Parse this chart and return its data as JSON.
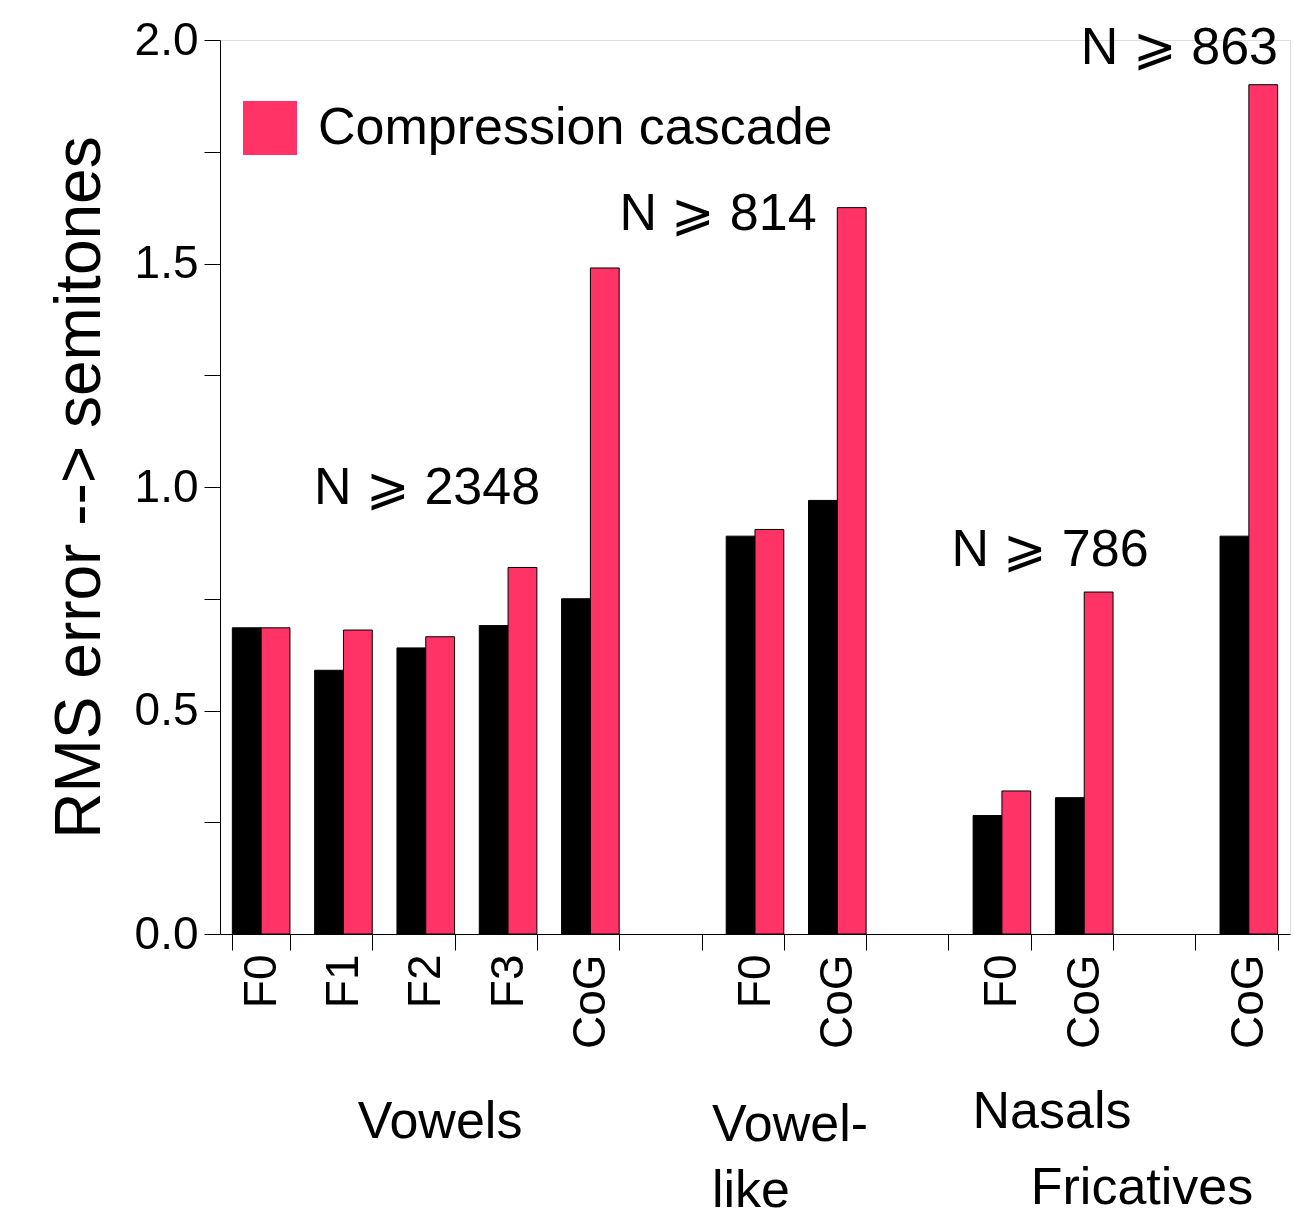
{
  "chart_data": {
    "type": "bar",
    "ylabel": "RMS error --> semitones",
    "categories": [
      "F0",
      "F1",
      "F2",
      "F3",
      "CoG",
      null,
      "F0",
      "CoG",
      null,
      "F0",
      "CoG",
      null,
      "CoG"
    ],
    "series": [
      {
        "color": "#000000",
        "values": [
          0.685,
          0.59,
          0.64,
          0.69,
          0.75,
          null,
          0.89,
          0.97,
          null,
          0.265,
          0.305,
          null,
          0.89
        ]
      },
      {
        "name": "Compression cascade",
        "color": "#ff3366",
        "values": [
          0.685,
          0.68,
          0.665,
          0.82,
          1.49,
          null,
          0.905,
          1.625,
          null,
          0.32,
          0.765,
          null,
          1.9
        ]
      }
    ],
    "ylim": [
      0,
      2
    ],
    "yticks": [
      {
        "value": 0,
        "label": "0.0"
      },
      {
        "value": 0.25,
        "label": null
      },
      {
        "value": 0.5,
        "label": "0.5"
      },
      {
        "value": 0.75,
        "label": null
      },
      {
        "value": 1,
        "label": "1.0"
      },
      {
        "value": 1.25,
        "label": null
      },
      {
        "value": 1.5,
        "label": "1.5"
      },
      {
        "value": 1.75,
        "label": null
      },
      {
        "value": 2,
        "label": "2.0"
      }
    ],
    "annotations": [
      "N ⩾ 2348",
      "N ⩾ 814",
      "N ⩾ 786",
      "N ⩾ 863",
      "Vowels",
      "Vowel-\nlike",
      "Nasals",
      "Fricatives"
    ],
    "grid": false,
    "legend": "top left"
  }
}
